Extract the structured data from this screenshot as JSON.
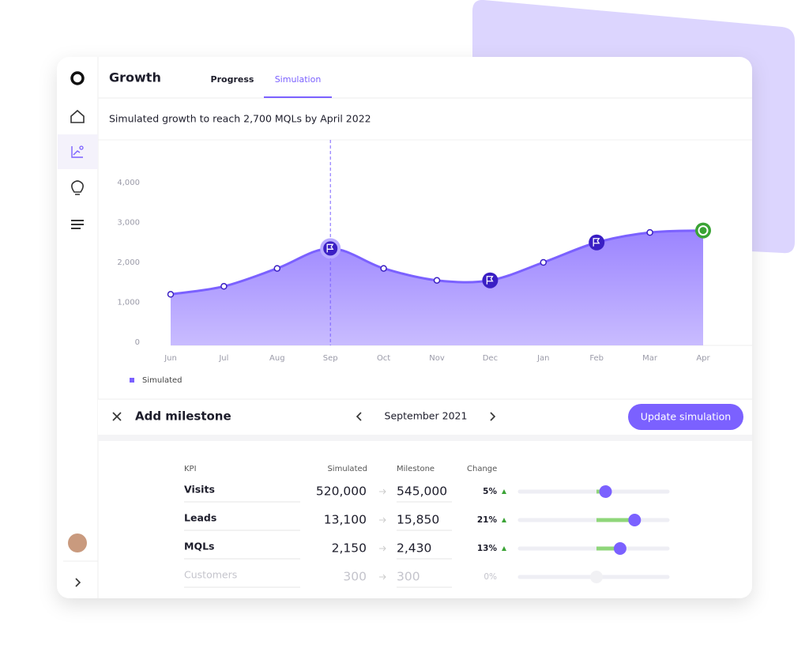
{
  "header": {
    "title": "Growth",
    "tabs": [
      "Progress",
      "Simulation"
    ]
  },
  "chart_data": {
    "type": "area",
    "title": "Simulated growth to reach 2,700 MQLs by April 2022",
    "categories": [
      "Jun",
      "Jul",
      "Aug",
      "Sep",
      "Oct",
      "Nov",
      "Dec",
      "Jan",
      "Feb",
      "Mar",
      "Apr"
    ],
    "series": [
      {
        "name": "Simulated",
        "color": "#7b61ff",
        "values": [
          1200,
          1400,
          1850,
          2350,
          1850,
          1550,
          1550,
          2000,
          2500,
          2750,
          2800
        ]
      }
    ],
    "ylim": [
      0,
      4000
    ],
    "yticks": [
      0,
      {
        "value": 1000,
        "label": "1,000"
      },
      {
        "value": 2000,
        "label": "2,000"
      },
      {
        "value": 3000,
        "label": "3,000"
      },
      {
        "value": 4000,
        "label": "4,000"
      }
    ],
    "legend": "bottom-left"
  },
  "milestone": {
    "title": "Add milestone",
    "month": "September 2021",
    "button": "Update simulation"
  },
  "table": {
    "headers": [
      "KPI",
      "Simulated",
      "Milestone",
      "Change"
    ],
    "rows": [
      [
        "Visits",
        "520,000",
        "545,000",
        "5%"
      ],
      [
        "Leads",
        "13,100",
        "15,850",
        "21%"
      ],
      [
        "MQLs",
        "2,150",
        "2,430",
        "13%"
      ],
      [
        "Customers",
        "300",
        "300",
        "0%"
      ]
    ]
  }
}
